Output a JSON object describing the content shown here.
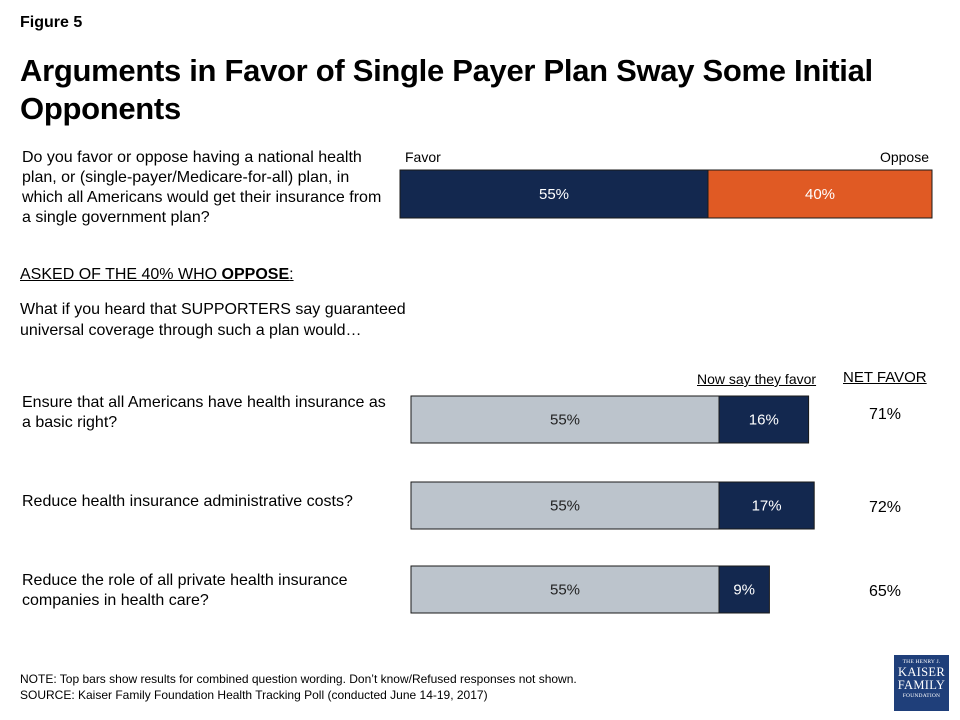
{
  "figure_label": "Figure 5",
  "title": "Arguments in Favor of Single Payer Plan Sway Some Initial Opponents",
  "main_question": "Do you favor or oppose having a national health plan, or (single-payer/Medicare-for-all) plan, in which all Americans would get their insurance from a single government plan?",
  "asked_prefix": "ASKED OF THE 40% WHO ",
  "asked_bold": "OPPOSE",
  "asked_suffix": ":",
  "followup_question": "What if you heard that SUPPORTERS say guaranteed universal coverage through such a plan would…",
  "note": "NOTE: Top bars show results for combined question wording. Don’t know/Refused responses not shown.",
  "source": "SOURCE: Kaiser Family Foundation Health Tracking Poll (conducted June 14-19, 2017)",
  "logo": {
    "line1": "THE HENRY J.",
    "line2": "KAISER",
    "line3": "FAMILY",
    "line4": "FOUNDATION",
    "color": "#1f3f7a"
  },
  "chart_data": [
    {
      "type": "bar",
      "orientation": "horizontal",
      "stacked": true,
      "categories": [
        "Do you favor or oppose having a national health plan, or (single-payer/Medicare-for-all) plan, in which all Americans would get their insurance from a single government plan?"
      ],
      "series": [
        {
          "name": "Favor",
          "values": [
            55
          ],
          "labels": [
            "55%"
          ],
          "color": "#13284f"
        },
        {
          "name": "Oppose",
          "values": [
            40
          ],
          "labels": [
            "40%"
          ],
          "color": "#e05a24"
        }
      ],
      "xlim": [
        0,
        100
      ]
    },
    {
      "type": "bar",
      "orientation": "horizontal",
      "stacked": true,
      "categories": [
        "Ensure that all Americans have health insurance as a basic right?",
        "Reduce health insurance administrative costs?",
        "Reduce the role of all private health insurance companies in health care?"
      ],
      "series": [
        {
          "values": [
            55,
            55,
            55
          ],
          "labels": [
            "55%",
            "55%",
            "55%"
          ],
          "color": "#bcc4cc"
        },
        {
          "name": "Now say they favor",
          "values": [
            16,
            17,
            9
          ],
          "labels": [
            "16%",
            "17%",
            "9%"
          ],
          "color": "#13284f"
        }
      ],
      "net_favor_header": "NET FAVOR",
      "net_favor": [
        "71%",
        "72%",
        "65%"
      ],
      "xlim": [
        0,
        100
      ]
    }
  ]
}
